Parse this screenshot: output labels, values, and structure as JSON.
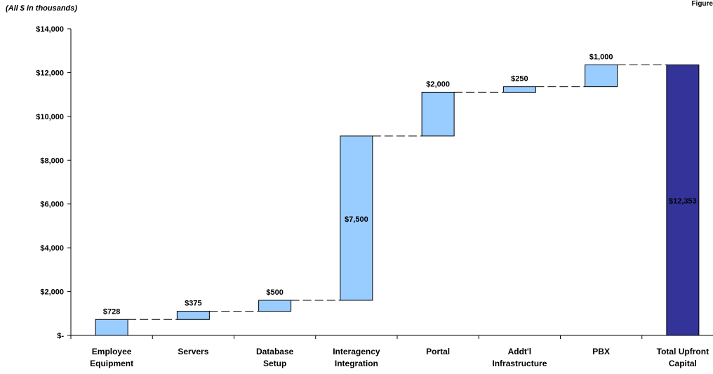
{
  "header": {
    "note": "(All $ in thousands)",
    "figure_label": "Figure"
  },
  "chart_data": {
    "type": "bar",
    "subtype": "waterfall",
    "title": "",
    "xlabel": "",
    "ylabel": "",
    "ylim": [
      0,
      14000
    ],
    "yticks": [
      0,
      2000,
      4000,
      6000,
      8000,
      10000,
      12000,
      14000
    ],
    "ytick_labels": [
      "$-",
      "$2,000",
      "$4,000",
      "$6,000",
      "$8,000",
      "$10,000",
      "$12,000",
      "$14,000"
    ],
    "categories": [
      [
        "Employee",
        "Equipment"
      ],
      [
        "Servers"
      ],
      [
        "Database",
        "Setup"
      ],
      [
        "Interagency",
        "Integration"
      ],
      [
        "Portal"
      ],
      [
        "Addt'l",
        "Infrastructure"
      ],
      [
        "PBX"
      ],
      [
        "Total Upfront",
        "Capital"
      ]
    ],
    "values": [
      728,
      375,
      500,
      7500,
      2000,
      250,
      1000,
      12353
    ],
    "data_labels": [
      "$728",
      "$375",
      "$500",
      "$7,500",
      "$2,000",
      "$250",
      "$1,000",
      "$12,353"
    ],
    "is_total": [
      false,
      false,
      false,
      false,
      false,
      false,
      false,
      true
    ],
    "grid": false,
    "legend": "none",
    "colors": {
      "increment_fill": "#99ccff",
      "total_fill": "#333399",
      "outline": "#000000"
    }
  }
}
